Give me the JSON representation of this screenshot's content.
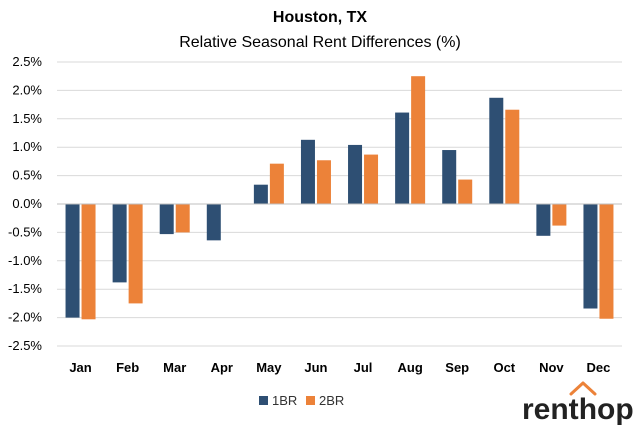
{
  "chart_data": {
    "type": "bar",
    "title": "Houston, TX",
    "subtitle": "Relative Seasonal Rent Differences (%)",
    "categories": [
      "Jan",
      "Feb",
      "Mar",
      "Apr",
      "May",
      "Jun",
      "Jul",
      "Aug",
      "Sep",
      "Oct",
      "Nov",
      "Dec"
    ],
    "series": [
      {
        "name": "1BR",
        "color": "#2E4F73",
        "values": [
          -2.0,
          -1.38,
          -0.53,
          -0.64,
          0.34,
          1.13,
          1.04,
          1.61,
          0.95,
          1.87,
          -0.56,
          -1.84
        ]
      },
      {
        "name": "2BR",
        "color": "#EC8239",
        "values": [
          -2.03,
          -1.75,
          -0.5,
          0.0,
          0.71,
          0.77,
          0.87,
          2.25,
          0.43,
          1.66,
          -0.38,
          -2.02
        ]
      }
    ],
    "ylim": [
      -2.5,
      2.5
    ],
    "yticks": [
      "-2.5%",
      "-2.0%",
      "-1.5%",
      "-1.0%",
      "-0.5%",
      "0.0%",
      "0.5%",
      "1.0%",
      "1.5%",
      "2.0%",
      "2.5%"
    ],
    "ytick_values": [
      -2.5,
      -2.0,
      -1.5,
      -1.0,
      -0.5,
      0.0,
      0.5,
      1.0,
      1.5,
      2.0,
      2.5
    ],
    "grid": true,
    "legend_position": "bottom-center"
  },
  "logo": {
    "text": "renthop",
    "colors": {
      "main": "#222222",
      "accent": "#EC8239"
    }
  },
  "colors": {
    "grid": "#D9D9D9",
    "axis": "#BFBFBF"
  }
}
